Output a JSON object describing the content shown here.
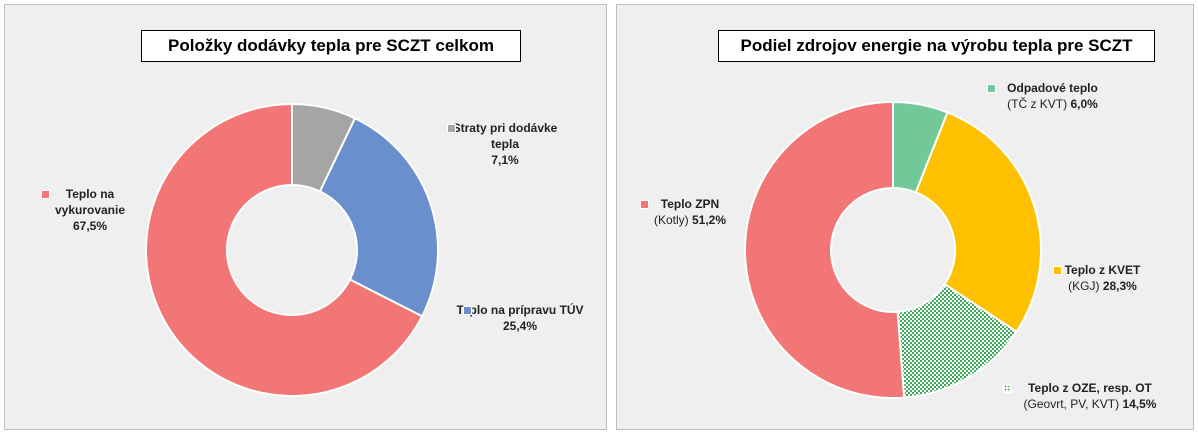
{
  "chart_data": [
    {
      "type": "donut",
      "title": "Položky dodávky tepla pre SCZT celkom",
      "categories": [
        "Straty pri dodávke tepla",
        "Teplo na prípravu TÚV",
        "Teplo na vykurovanie"
      ],
      "values": [
        7.1,
        25.4,
        67.5
      ],
      "value_labels": [
        "7,1%",
        "25,4%",
        "67,5%"
      ],
      "colors": [
        "#a5a5a5",
        "#6a8fcd",
        "#f37676"
      ]
    },
    {
      "type": "donut",
      "title": "Podiel zdrojov energie na výrobu tepla pre SCZT",
      "categories": [
        "Odpadové teplo",
        "Teplo  z KVET",
        "Teplo z OZE, resp. OT",
        "Teplo ZPN"
      ],
      "sublabels": [
        "(TČ z KVT)",
        "(KGJ)",
        "(Geovrt, PV, KVT)",
        "(Kotly)"
      ],
      "values": [
        6.0,
        28.3,
        14.5,
        51.2
      ],
      "value_labels": [
        "6,0%",
        "28,3%",
        "14,5%",
        "51,2%"
      ],
      "colors": [
        "#70c997",
        "#ffc000",
        "#2e9e4a",
        "#f37676"
      ],
      "patterns": [
        null,
        null,
        "dots",
        null
      ]
    }
  ]
}
